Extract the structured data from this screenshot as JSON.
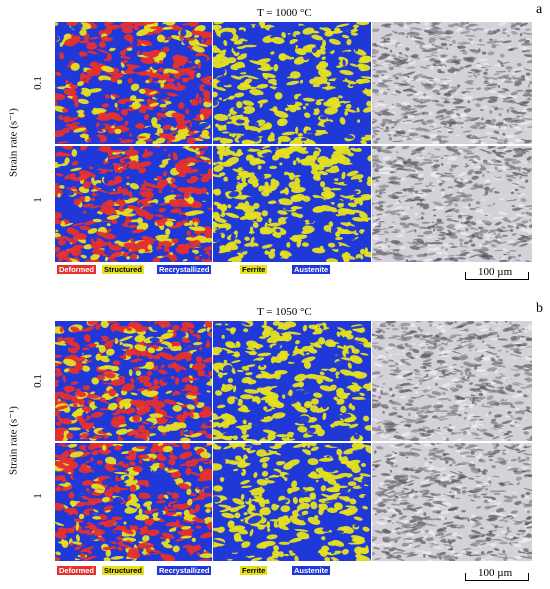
{
  "colors": {
    "deformed": "#e53030",
    "structured": "#e6e01e",
    "recrystallized": "#2038d8",
    "ferrite": "#e6e01e",
    "austenite": "#2038d8",
    "optical_light": "#d4d2d8",
    "optical_dark": "#5a5560"
  },
  "panels": [
    {
      "letter": "a",
      "title": "T = 1000 °C",
      "ylabel": "Strain rate (s⁻¹)",
      "rows": [
        "0.1",
        "1"
      ],
      "legend_grain": [
        "Deformed",
        "Structured",
        "Recrystallized"
      ],
      "legend_phase": [
        "Ferrite",
        "Austenite"
      ],
      "scale_bar": "100 µm"
    },
    {
      "letter": "b",
      "title": "T = 1050 °C",
      "ylabel": "Strain rate (s⁻¹)",
      "rows": [
        "0.1",
        "1"
      ],
      "legend_grain": [
        "Deformed",
        "Structured",
        "Recrystallized"
      ],
      "legend_phase": [
        "Ferrite",
        "Austenite"
      ],
      "scale_bar": "100 µm"
    }
  ]
}
